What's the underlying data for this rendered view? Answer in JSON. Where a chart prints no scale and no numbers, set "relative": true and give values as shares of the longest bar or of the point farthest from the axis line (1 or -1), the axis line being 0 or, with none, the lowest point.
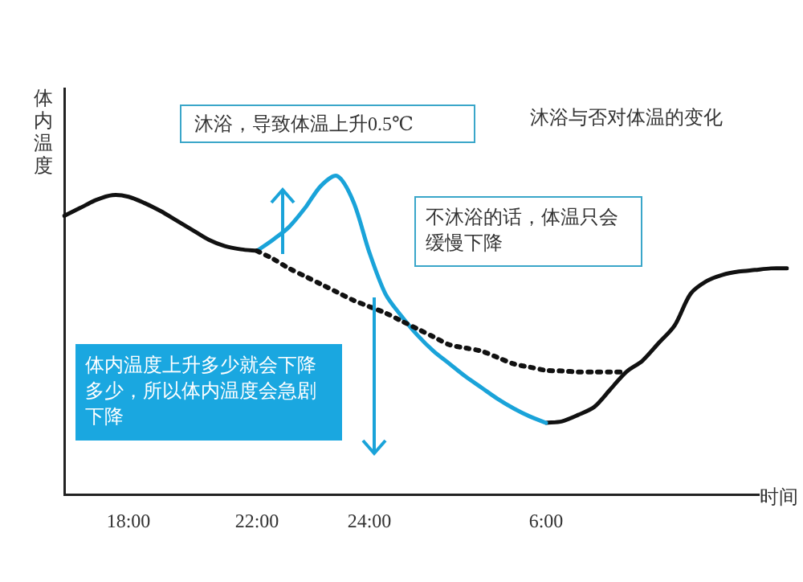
{
  "chart_data": {
    "type": "line",
    "relative": true,
    "title": "沐浴与否对体温的变化",
    "xlabel": "时间",
    "ylabel": "体内温度",
    "categories": [
      null,
      null,
      null,
      null,
      "18:00",
      null,
      null,
      null,
      null,
      null,
      null,
      null,
      "22:00",
      null,
      null,
      null,
      null,
      null,
      null,
      "24:00",
      null,
      null,
      null,
      null,
      null,
      null,
      null,
      null,
      null,
      null,
      "6:00",
      null,
      null,
      null,
      null,
      null,
      null,
      null,
      null,
      null,
      null,
      null,
      null,
      null,
      null,
      null
    ],
    "series": [
      {
        "color": "#111111",
        "line_style": "solid",
        "values": [
          0.875,
          0.9,
          0.925,
          0.94,
          0.935,
          0.915,
          0.89,
          0.86,
          0.83,
          0.8,
          0.78,
          0.77,
          0.765,
          null,
          null,
          null,
          null,
          null,
          null,
          null,
          null,
          null,
          null,
          null,
          null,
          null,
          null,
          null,
          null,
          null,
          null,
          null,
          null,
          null,
          null,
          null,
          null,
          null,
          null,
          null,
          null,
          null,
          null,
          null,
          null,
          null
        ]
      },
      {
        "color": "#111111",
        "line_style": "dotted",
        "values": [
          null,
          null,
          null,
          null,
          null,
          null,
          null,
          null,
          null,
          null,
          null,
          null,
          0.765,
          0.74,
          0.71,
          0.685,
          0.66,
          0.635,
          0.61,
          0.59,
          0.57,
          0.545,
          0.52,
          0.495,
          0.47,
          0.46,
          0.45,
          0.43,
          0.41,
          0.4,
          0.39,
          0.388,
          0.385,
          0.385,
          0.385,
          0.385,
          null,
          null,
          null,
          null,
          null,
          null,
          null,
          null,
          null,
          null
        ]
      },
      {
        "color": "#1aa3d9",
        "line_style": "solid",
        "values": [
          null,
          null,
          null,
          null,
          null,
          null,
          null,
          null,
          null,
          null,
          null,
          null,
          0.765,
          0.8,
          0.84,
          0.9,
          0.97,
          1,
          0.92,
          0.76,
          0.63,
          0.56,
          0.5,
          0.45,
          0.41,
          0.37,
          0.335,
          0.3,
          0.27,
          0.245,
          0.225,
          null,
          null,
          null,
          null,
          null,
          null,
          null,
          null,
          null,
          null,
          null,
          null,
          null,
          null,
          null
        ]
      },
      {
        "color": "#111111",
        "line_style": "solid",
        "values": [
          null,
          null,
          null,
          null,
          null,
          null,
          null,
          null,
          null,
          null,
          null,
          null,
          null,
          null,
          null,
          null,
          null,
          null,
          null,
          null,
          null,
          null,
          null,
          null,
          null,
          null,
          null,
          null,
          null,
          null,
          0.225,
          0.23,
          0.25,
          0.275,
          0.33,
          0.385,
          0.42,
          0.475,
          0.53,
          0.63,
          0.67,
          0.69,
          0.7,
          0.705,
          0.71,
          0.71
        ]
      }
    ],
    "annotations": [
      "沐浴，导致体温上升0.5℃",
      "不沐浴的话，体温只会缓慢下降",
      "体内温度上升多少就会下降多少，所以体内温度会急剧下降"
    ],
    "grid": false,
    "legend": false,
    "marker": "none"
  }
}
